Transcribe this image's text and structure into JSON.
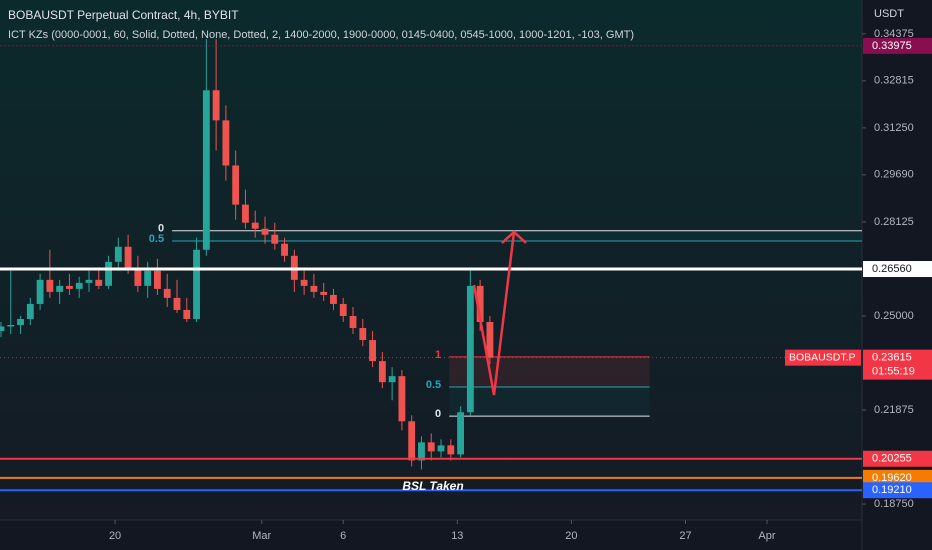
{
  "chart_data": {
    "type": "candlestick",
    "title": "BOBAUSDT Perpetual Contract, 4h, BYBIT",
    "subtitle": "ICT KZs (0000-0001, 60, Solid, Dotted, None, Dotted, 2, 1400-2000, 1900-0000, 0145-0400, 0545-1000, 1000-1201, -103, GMT)",
    "y_axis_label": "USDT",
    "up_color": "#26a69a",
    "down_color": "#ef5350",
    "xlim": [
      12.94,
      65.83
    ],
    "ylim": [
      0.1822,
      0.355
    ],
    "xticks": [
      {
        "value": 20,
        "label": "20"
      },
      {
        "value": 29,
        "label": "Mar"
      },
      {
        "value": 34,
        "label": "6"
      },
      {
        "value": 41,
        "label": "13"
      },
      {
        "value": 48,
        "label": "20"
      },
      {
        "value": 55,
        "label": "27"
      },
      {
        "value": 60,
        "label": "Apr"
      }
    ],
    "yticks": [
      0.34375,
      0.32815,
      {
        "value": 0.3125,
        "label": "0.31250"
      },
      {
        "value": 0.2969,
        "label": "0.29690"
      },
      0.28125,
      {
        "value": 0.25,
        "label": "0.25000"
      },
      0.21875,
      {
        "value": 0.1875,
        "label": "0.18750"
      }
    ],
    "x": [
      13.0,
      13.6,
      14.2,
      14.8,
      15.4,
      16.0,
      16.6,
      17.2,
      17.8,
      18.4,
      19.0,
      19.6,
      20.2,
      20.8,
      21.4,
      22.0,
      22.6,
      23.2,
      23.8,
      24.4,
      25.0,
      25.6,
      26.2,
      26.8,
      27.4,
      28.0,
      28.6,
      29.2,
      29.8,
      30.4,
      31.0,
      31.6,
      32.2,
      32.8,
      33.4,
      34.0,
      34.6,
      35.2,
      35.8,
      36.4,
      37.0,
      37.6,
      38.2,
      38.8,
      39.4,
      40.0,
      40.6,
      41.2,
      41.8,
      42.4,
      43.0
    ],
    "open": [
      0.245,
      0.2465,
      0.247,
      0.249,
      0.254,
      0.262,
      0.258,
      0.26,
      0.259,
      0.261,
      0.262,
      0.26,
      0.268,
      0.273,
      0.266,
      0.26,
      0.265,
      0.259,
      0.256,
      0.252,
      0.249,
      0.272,
      0.325,
      0.315,
      0.3,
      0.287,
      0.281,
      0.279,
      0.277,
      0.274,
      0.27,
      0.262,
      0.26,
      0.258,
      0.257,
      0.254,
      0.25,
      0.246,
      0.242,
      0.235,
      0.228,
      0.23,
      0.215,
      0.202,
      0.208,
      0.205,
      0.207,
      0.204,
      0.218,
      0.26,
      0.248
    ],
    "high": [
      0.248,
      0.265,
      0.25,
      0.256,
      0.264,
      0.272,
      0.262,
      0.264,
      0.263,
      0.265,
      0.266,
      0.27,
      0.276,
      0.277,
      0.27,
      0.268,
      0.269,
      0.264,
      0.262,
      0.256,
      0.276,
      0.342,
      0.342,
      0.32,
      0.305,
      0.292,
      0.285,
      0.283,
      0.281,
      0.276,
      0.272,
      0.265,
      0.264,
      0.261,
      0.259,
      0.256,
      0.253,
      0.249,
      0.245,
      0.238,
      0.233,
      0.232,
      0.217,
      0.21,
      0.211,
      0.209,
      0.209,
      0.22,
      0.266,
      0.262,
      0.25
    ],
    "low": [
      0.243,
      0.244,
      0.244,
      0.247,
      0.252,
      0.256,
      0.254,
      0.257,
      0.256,
      0.258,
      0.259,
      0.259,
      0.265,
      0.264,
      0.258,
      0.256,
      0.257,
      0.253,
      0.251,
      0.248,
      0.248,
      0.27,
      0.305,
      0.295,
      0.282,
      0.279,
      0.276,
      0.274,
      0.272,
      0.268,
      0.258,
      0.257,
      0.256,
      0.255,
      0.252,
      0.248,
      0.244,
      0.24,
      0.233,
      0.226,
      0.222,
      0.212,
      0.2,
      0.199,
      0.202,
      0.203,
      0.202,
      0.203,
      0.217,
      0.245,
      0.234
    ],
    "close": [
      0.2465,
      0.247,
      0.249,
      0.254,
      0.262,
      0.258,
      0.26,
      0.259,
      0.261,
      0.262,
      0.26,
      0.268,
      0.273,
      0.266,
      0.26,
      0.265,
      0.259,
      0.256,
      0.252,
      0.249,
      0.272,
      0.325,
      0.315,
      0.3,
      0.287,
      0.281,
      0.279,
      0.277,
      0.274,
      0.27,
      0.262,
      0.26,
      0.258,
      0.257,
      0.254,
      0.25,
      0.246,
      0.242,
      0.235,
      0.228,
      0.23,
      0.215,
      0.202,
      0.208,
      0.205,
      0.207,
      0.204,
      0.218,
      0.26,
      0.248,
      0.23615
    ],
    "price_levels": [
      {
        "value": 0.33975,
        "label": "0.33975",
        "color": "#880e4f"
      },
      {
        "value": 0.2656,
        "label": "0.26560",
        "color": "#ffffff"
      },
      {
        "value": 0.20255,
        "label": "0.20255",
        "color": "#f23645"
      },
      {
        "value": 0.1962,
        "label": "0.19620",
        "color": "#f57c00"
      },
      {
        "value": 0.1921,
        "label": "0.19210",
        "color": "#2962ff"
      }
    ],
    "last_price": {
      "value": 0.23615,
      "label": "0.23615",
      "symbol": "BOBAUSDT.P",
      "countdown": "01:55:19",
      "color": "#f23645"
    },
    "fibs": [
      {
        "x_start": 23.5,
        "x_end": 65.83,
        "levels": [
          {
            "level": 0,
            "price": 0.2783
          },
          {
            "level": 0.5,
            "price": 0.2749
          }
        ]
      },
      {
        "x_start": 40.5,
        "x_end": 52.8,
        "levels": [
          {
            "level": 1,
            "price": 0.2364
          },
          {
            "level": 0.5,
            "price": 0.2264
          },
          {
            "level": 0,
            "price": 0.2167
          }
        ]
      }
    ],
    "annotation": "BSL Taken"
  }
}
